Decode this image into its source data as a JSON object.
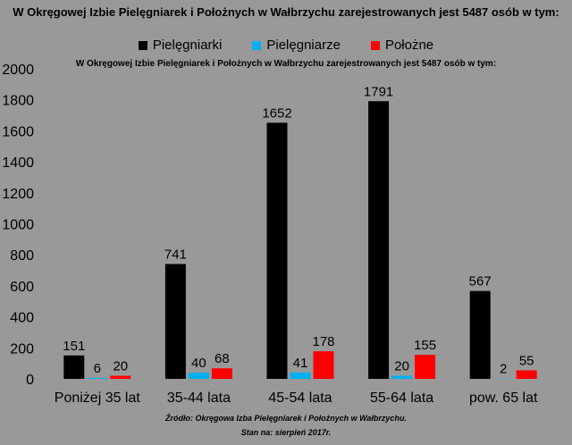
{
  "chart_data": {
    "type": "bar",
    "title": "W Okręgowej Izbie Pielęgniarek i Położnych w Wałbrzychu zarejestrowanych jest  5487 osób w tym:",
    "subtitle": "W Okręgowej Izbie Pielęgniarek i Położnych w Wałbrzychu zarejestrowanych jest  5487 osób w tym:",
    "categories": [
      "Poniżej 35 lat",
      "35-44 lata",
      "45-54 lata",
      "55-64 lata",
      "pow. 65 lat"
    ],
    "series": [
      {
        "name": "Pielęgniarki",
        "color": "#000000",
        "values": [
          151,
          741,
          1652,
          1791,
          567
        ]
      },
      {
        "name": "Pielęgniarze",
        "color": "#00b0f0",
        "values": [
          6,
          40,
          41,
          20,
          2
        ]
      },
      {
        "name": "Położne",
        "color": "#ff0000",
        "values": [
          20,
          68,
          178,
          155,
          55
        ]
      }
    ],
    "ylim": [
      0,
      2000
    ],
    "yticks": [
      0,
      200,
      400,
      600,
      800,
      1000,
      1200,
      1400,
      1600,
      1800,
      2000
    ],
    "legend_position": "top",
    "grid": false
  },
  "source_line1": "Źródło: Okręgowa Izba Pielęgniarek i Położnych w Wałbrzychu.",
  "source_line2": "Stan na: sierpień 2017r."
}
